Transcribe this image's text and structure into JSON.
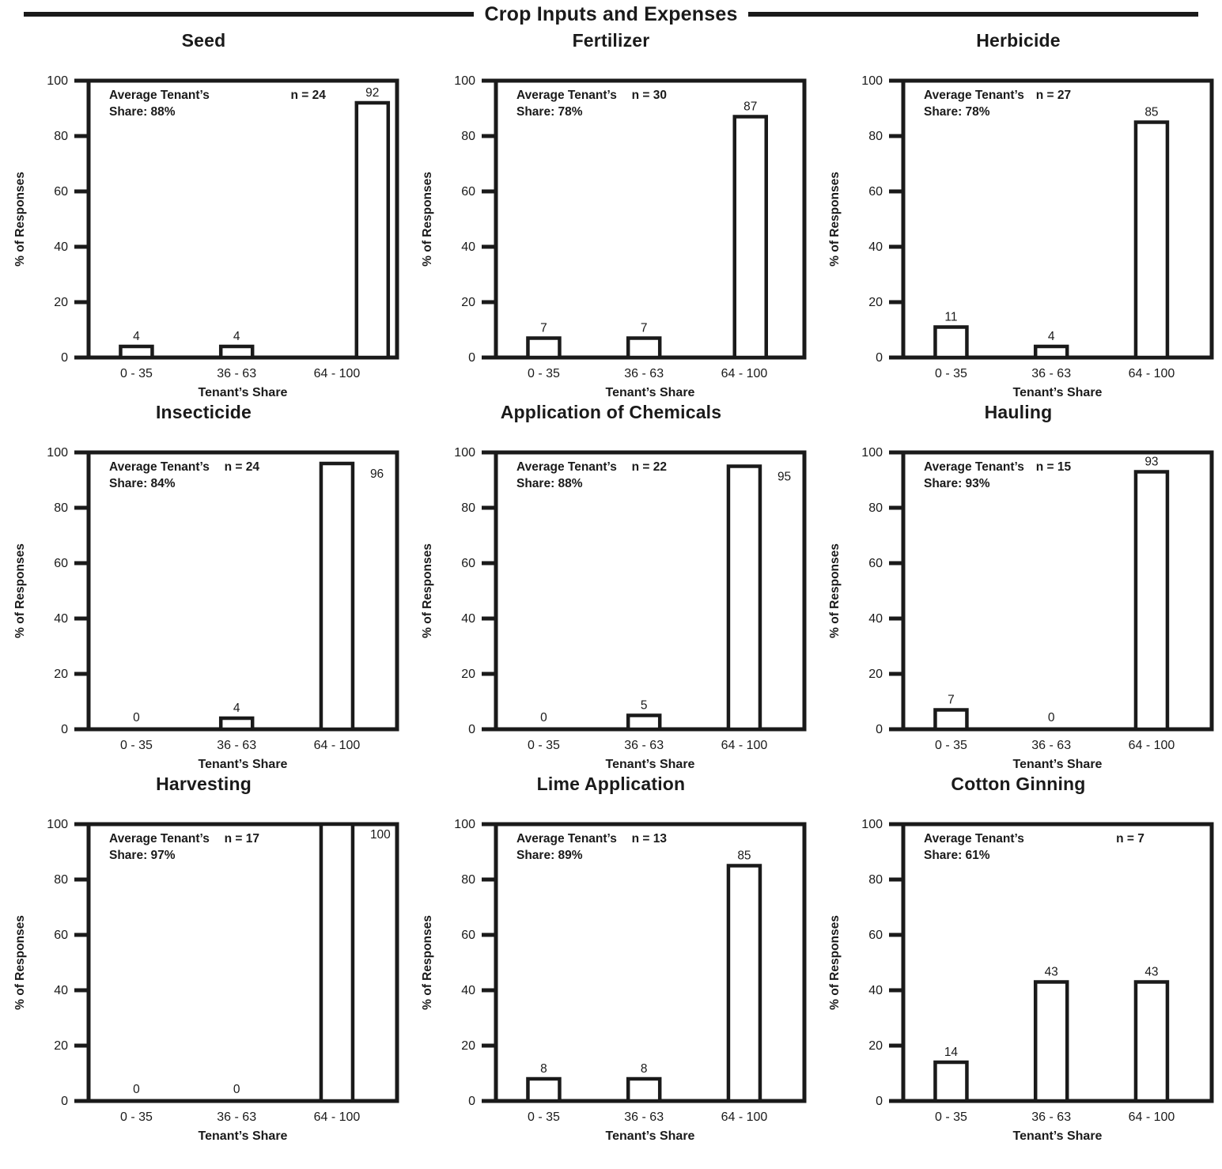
{
  "header": {
    "title": "Crop Inputs and Expenses"
  },
  "ink_color": "#1a1a1a",
  "chart_data": [
    {
      "type": "bar",
      "title": "Seed",
      "categories": [
        "0 - 35",
        "36 - 63",
        "64 - 100"
      ],
      "values": [
        4,
        4,
        92
      ],
      "annotation": {
        "share_line1": "Average Tenant’s",
        "share_line2": "Share: 88%",
        "n_label": "n = 24"
      },
      "xlabel": "Tenant’s Share",
      "ylabel": "% of Responses",
      "ylim": [
        0,
        100
      ],
      "yticks": [
        0,
        20,
        40,
        60,
        80,
        100
      ],
      "grid": false,
      "layout": {
        "n_x": 0.655,
        "value_labels": [
          "top",
          "top",
          "top"
        ],
        "bar_shift": [
          0,
          0,
          0.115
        ]
      }
    },
    {
      "type": "bar",
      "title": "Fertilizer",
      "categories": [
        "0 - 35",
        "36 - 63",
        "64 - 100"
      ],
      "values": [
        7,
        7,
        87
      ],
      "annotation": {
        "share_line1": "Average Tenant’s",
        "share_line2": "Share: 78%",
        "n_label": "n = 30"
      },
      "xlabel": "Tenant’s Share",
      "ylabel": "% of Responses",
      "ylim": [
        0,
        100
      ],
      "yticks": [
        0,
        20,
        40,
        60,
        80,
        100
      ],
      "grid": false,
      "layout": {
        "n_x": 0.44,
        "value_labels": [
          "top",
          "top",
          "top"
        ],
        "bar_shift": [
          0,
          0,
          0.02
        ]
      }
    },
    {
      "type": "bar",
      "title": "Herbicide",
      "categories": [
        "0 - 35",
        "36 - 63",
        "64 - 100"
      ],
      "values": [
        11,
        4,
        85
      ],
      "annotation": {
        "share_line1": "Average Tenant’s",
        "share_line2": "Share: 78%",
        "n_label": "n = 27"
      },
      "xlabel": "Tenant’s Share",
      "ylabel": "% of Responses",
      "ylim": [
        0,
        100
      ],
      "yticks": [
        0,
        20,
        40,
        60,
        80,
        100
      ],
      "grid": false,
      "layout": {
        "n_x": 0.43,
        "value_labels": [
          "top",
          "top",
          "top"
        ],
        "bar_shift": [
          0,
          0,
          0
        ]
      }
    },
    {
      "type": "bar",
      "title": "Insecticide",
      "categories": [
        "0 - 35",
        "36 - 63",
        "64 - 100"
      ],
      "values": [
        0,
        4,
        96
      ],
      "annotation": {
        "share_line1": "Average Tenant’s",
        "share_line2": "Share: 84%",
        "n_label": "n = 24"
      },
      "xlabel": "Tenant’s Share",
      "ylabel": "% of Responses",
      "ylim": [
        0,
        100
      ],
      "yticks": [
        0,
        20,
        40,
        60,
        80,
        100
      ],
      "grid": false,
      "layout": {
        "n_x": 0.44,
        "value_labels": [
          "top",
          "top",
          "right"
        ],
        "bar_shift": [
          0,
          0,
          0
        ]
      }
    },
    {
      "type": "bar",
      "title": "Application of Chemicals",
      "categories": [
        "0 - 35",
        "36 - 63",
        "64 - 100"
      ],
      "values": [
        0,
        5,
        95
      ],
      "annotation": {
        "share_line1": "Average Tenant’s",
        "share_line2": "Share: 88%",
        "n_label": "n = 22"
      },
      "xlabel": "Tenant’s Share",
      "ylabel": "% of Responses",
      "ylim": [
        0,
        100
      ],
      "yticks": [
        0,
        20,
        40,
        60,
        80,
        100
      ],
      "grid": false,
      "layout": {
        "n_x": 0.44,
        "value_labels": [
          "top",
          "top",
          "right"
        ],
        "bar_shift": [
          0,
          0,
          0
        ]
      }
    },
    {
      "type": "bar",
      "title": "Hauling",
      "categories": [
        "0 - 35",
        "36 - 63",
        "64 - 100"
      ],
      "values": [
        7,
        0,
        93
      ],
      "annotation": {
        "share_line1": "Average Tenant’s",
        "share_line2": "Share: 93%",
        "n_label": "n = 15"
      },
      "xlabel": "Tenant’s Share",
      "ylabel": "% of Responses",
      "ylim": [
        0,
        100
      ],
      "yticks": [
        0,
        20,
        40,
        60,
        80,
        100
      ],
      "grid": false,
      "layout": {
        "n_x": 0.43,
        "value_labels": [
          "top",
          "top",
          "top"
        ],
        "bar_shift": [
          0,
          0,
          0
        ]
      }
    },
    {
      "type": "bar",
      "title": "Harvesting",
      "categories": [
        "0 - 35",
        "36 - 63",
        "64 - 100"
      ],
      "values": [
        0,
        0,
        100
      ],
      "annotation": {
        "share_line1": "Average Tenant’s",
        "share_line2": "Share: 97%",
        "n_label": "n = 17"
      },
      "xlabel": "Tenant’s Share",
      "ylabel": "% of Responses",
      "ylim": [
        0,
        100
      ],
      "yticks": [
        0,
        20,
        40,
        60,
        80,
        100
      ],
      "grid": false,
      "layout": {
        "n_x": 0.44,
        "value_labels": [
          "top",
          "top",
          "right"
        ],
        "bar_shift": [
          0,
          0,
          0
        ]
      }
    },
    {
      "type": "bar",
      "title": "Lime Application",
      "categories": [
        "0 - 35",
        "36 - 63",
        "64 - 100"
      ],
      "values": [
        8,
        8,
        85
      ],
      "annotation": {
        "share_line1": "Average Tenant’s",
        "share_line2": "Share: 89%",
        "n_label": "n = 13"
      },
      "xlabel": "Tenant’s Share",
      "ylabel": "% of Responses",
      "ylim": [
        0,
        100
      ],
      "yticks": [
        0,
        20,
        40,
        60,
        80,
        100
      ],
      "grid": false,
      "layout": {
        "n_x": 0.44,
        "value_labels": [
          "top",
          "top",
          "top"
        ],
        "bar_shift": [
          0,
          0,
          0
        ]
      }
    },
    {
      "type": "bar",
      "title": "Cotton Ginning",
      "categories": [
        "0 - 35",
        "36 - 63",
        "64 - 100"
      ],
      "values": [
        14,
        43,
        43
      ],
      "annotation": {
        "share_line1": "Average Tenant’s",
        "share_line2": "Share: 61%",
        "n_label": "n = 7"
      },
      "xlabel": "Tenant’s Share",
      "ylabel": "% of Responses",
      "ylim": [
        0,
        100
      ],
      "yticks": [
        0,
        20,
        40,
        60,
        80,
        100
      ],
      "grid": false,
      "layout": {
        "n_x": 0.69,
        "value_labels": [
          "top",
          "top",
          "top"
        ],
        "bar_shift": [
          0,
          0,
          0
        ]
      }
    }
  ]
}
